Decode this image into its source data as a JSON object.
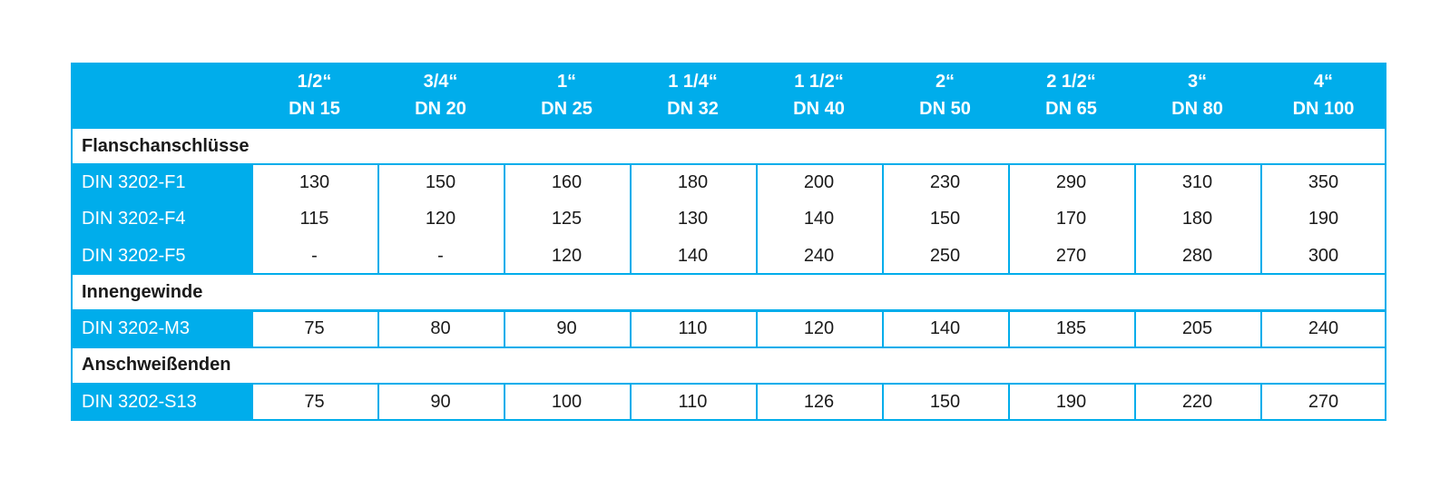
{
  "header": {
    "columns": [
      {
        "size": "1/2“",
        "dn": "DN 15"
      },
      {
        "size": "3/4“",
        "dn": "DN 20"
      },
      {
        "size": "1“",
        "dn": "DN 25"
      },
      {
        "size": "1 1/4“",
        "dn": "DN 32"
      },
      {
        "size": "1 1/2“",
        "dn": "DN 40"
      },
      {
        "size": "2“",
        "dn": "DN 50"
      },
      {
        "size": "2 1/2“",
        "dn": "DN 65"
      },
      {
        "size": "3“",
        "dn": "DN 80"
      },
      {
        "size": "4“",
        "dn": "DN 100"
      }
    ]
  },
  "sections": [
    {
      "title": "Flanschanschlüsse",
      "rows": [
        {
          "label": "DIN 3202-F1",
          "values": [
            130,
            150,
            160,
            180,
            200,
            230,
            290,
            310,
            350
          ]
        },
        {
          "label": "DIN 3202-F4",
          "values": [
            115,
            120,
            125,
            130,
            140,
            150,
            170,
            180,
            190
          ]
        },
        {
          "label": "DIN 3202-F5",
          "values": [
            "-",
            "-",
            120,
            140,
            240,
            250,
            270,
            280,
            300
          ]
        }
      ]
    },
    {
      "title": "Innengewinde",
      "rows": [
        {
          "label": "DIN 3202-M3",
          "values": [
            75,
            80,
            90,
            110,
            120,
            140,
            185,
            205,
            240
          ]
        }
      ]
    },
    {
      "title": "Anschweißenden",
      "rows": [
        {
          "label": "DIN 3202-S13",
          "values": [
            75,
            90,
            100,
            110,
            126,
            150,
            190,
            220,
            270
          ]
        }
      ]
    }
  ]
}
